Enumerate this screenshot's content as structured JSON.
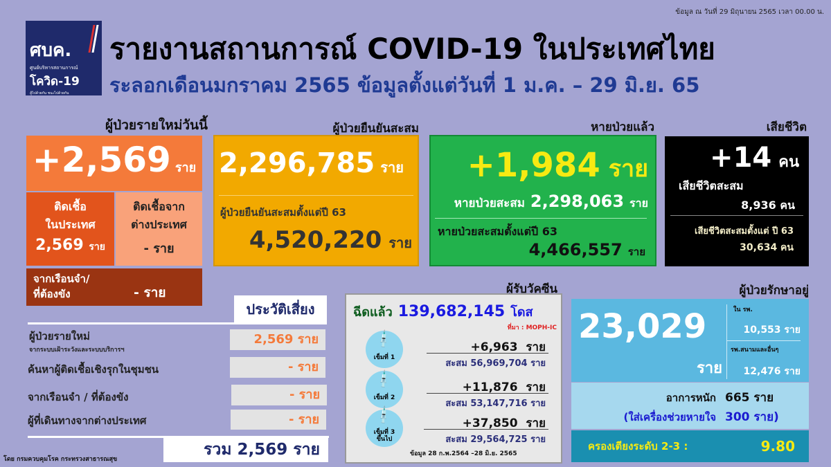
{
  "header": {
    "date_note": "ข้อมูล ณ วันที่ 29 มิถุนายน 2565 เวลา 00.00 น.",
    "title": "รายงานสถานการณ์ COVID-19 ในประเทศไทย",
    "subtitle": "ระลอกเดือนมกราคม 2565 ข้อมูลตั้งแต่วันที่ 1 ม.ค. – 29 มิ.ย. 65",
    "logo": {
      "main": "ศบค.",
      "sub": "ศูนย์บริหารสถานการณ์",
      "covid": "โควิด-19",
      "tag": "สู้ไปด้วยกัน ชนะไปด้วยกัน",
      "color": "#1f2a6b"
    }
  },
  "new_cases": {
    "label": "ผู้ป่วยรายใหม่วันนี้",
    "value": "+2,569",
    "unit": "ราย",
    "domestic_label": "ติดเชื้อ\nในประเทศ",
    "domestic_value": "2,569",
    "abroad_label": "ติดเชื้อจาก\nต่างประเทศ",
    "abroad_value": "-",
    "prison_label": "จากเรือนจำ/\nที่ต้องขัง",
    "prison_value": "-"
  },
  "confirmed": {
    "label": "ผู้ป่วยยืนยันสะสม",
    "value": "2,296,785",
    "unit": "ราย",
    "since_label": "ผู้ป่วยยืนยันสะสมตั้งแต่ปี 63",
    "since_value": "4,520,220"
  },
  "recovered": {
    "label": "หายป่วยแล้ว",
    "value": "+1,984",
    "unit": "ราย",
    "cum_label": "หายป่วยสะสม",
    "cum_value": "2,298,063",
    "since_label": "หายป่วยสะสมตั้งแต่ปี 63",
    "since_value": "4,466,557"
  },
  "deaths": {
    "label": "เสียชีวิต",
    "value": "+14",
    "unit": "คน",
    "cum_label": "เสียชีวิตสะสม",
    "cum_value": "8,936 คน",
    "since_label": "เสียชีวิตสะสมตั้งแต่ ปี 63",
    "since_value": "30,634 คน"
  },
  "risk": {
    "title": "ประวัติเสี่ยง",
    "rows": [
      {
        "label": "ผู้ป่วยรายใหม่",
        "sub": "จากระบบเฝ้าระวังและระบบบริการฯ",
        "value": "2,569 ราย"
      },
      {
        "label": "ค้นหาผู้ติดเชื้อเชิงรุกในชุมชน",
        "value": "- ราย"
      },
      {
        "label": "จากเรือนจำ / ที่ต้องขัง",
        "value": "- ราย"
      },
      {
        "label": "ผู้ที่เดินทางจากต่างประเทศ",
        "value": "- ราย"
      }
    ],
    "total": "รวม 2,569 ราย"
  },
  "footer": "โดย กรมควบคุมโรค กระทรวงสาธารณสุข",
  "vaccine": {
    "label": "ผู้รับวัคซีน",
    "injected_label": "ฉีดแล้ว",
    "injected_value": "139,682,145",
    "injected_unit": "โดส",
    "source": "ที่มา : MOPH-IC",
    "doses": [
      {
        "name": "เข็มที่ 1",
        "new": "+6,963  ราย",
        "cum": "สะสม 56,969,704 ราย"
      },
      {
        "name": "เข็มที่ 2",
        "new": "+11,876  ราย",
        "cum": "สะสม 53,147,716 ราย"
      },
      {
        "name": "เข็มที่ 3\nขึ้นไป",
        "new": "+37,850  ราย",
        "cum": "สะสม 29,564,725 ราย"
      }
    ],
    "note": "ข้อมูล 28 ก.พ.2564 –28 มิ.ย. 2565"
  },
  "treating": {
    "label": "ผู้ป่วยรักษาอยู่",
    "value": "23,029",
    "unit": "ราย",
    "hosp_label": "ใน รพ.",
    "hosp_value": "10,553 ราย",
    "field_label": "รพ.สนามและอื่นๆ",
    "field_value": "12,476 ราย",
    "severe_label": "อาการหนัก",
    "severe_value": "665 ราย",
    "vent_label": "(ใส่เครื่องช่วยหายใจ",
    "vent_value": "300 ราย)",
    "bed_label": "ครองเตียงระดับ 2-3 :",
    "bed_value": "9.80"
  }
}
